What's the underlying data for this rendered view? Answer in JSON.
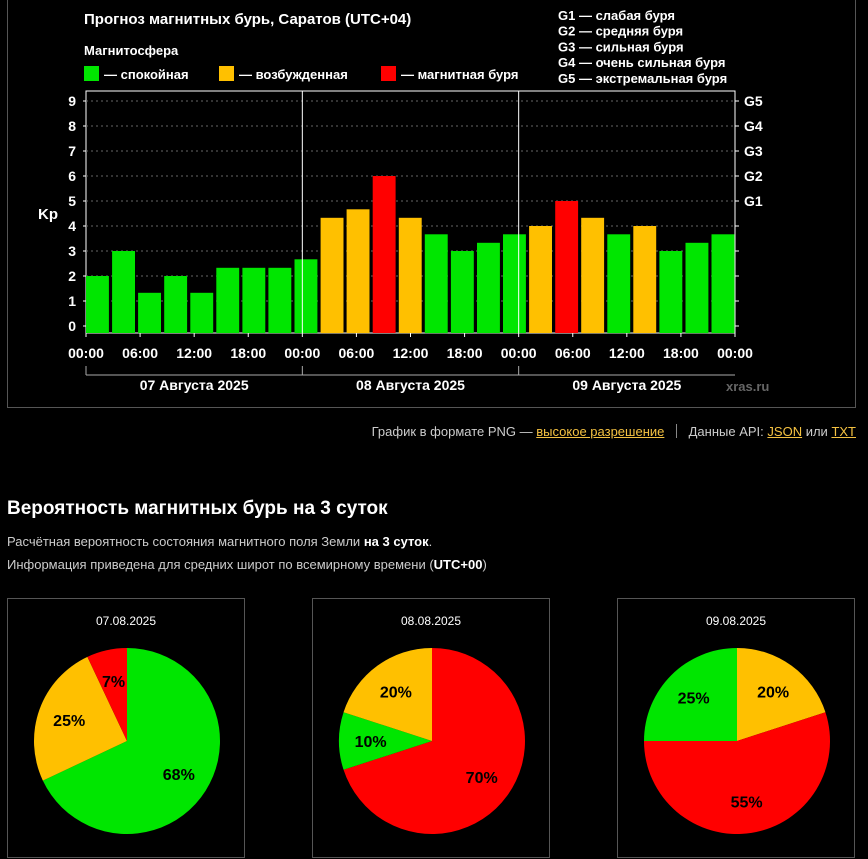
{
  "chart_data": [
    {
      "type": "bar",
      "title": "Прогноз магнитных бурь, Саратов (UTC+04)",
      "legend_title": "Магнитосфера",
      "legend": [
        {
          "label": "— спокойная",
          "color": "#00e600"
        },
        {
          "label": "— возбужденная",
          "color": "#ffc000"
        },
        {
          "label": "— магнитная буря",
          "color": "#ff0000"
        }
      ],
      "g_legend": [
        "G1 — слабая буря",
        "G2 — средняя буря",
        "G3 — сильная буря",
        "G4 — очень сильная буря",
        "G5 — экстремальная буря"
      ],
      "ylabel": "Kp",
      "ylim": [
        0,
        9
      ],
      "y_ticks": [
        "0",
        "1",
        "2",
        "3",
        "4",
        "5",
        "6",
        "7",
        "8",
        "9"
      ],
      "g_ticks": [
        {
          "kp": 5,
          "label": "G1"
        },
        {
          "kp": 6,
          "label": "G2"
        },
        {
          "kp": 7,
          "label": "G3"
        },
        {
          "kp": 8,
          "label": "G4"
        },
        {
          "kp": 9,
          "label": "G5"
        }
      ],
      "x_ticks": [
        "00:00",
        "06:00",
        "12:00",
        "18:00",
        "00:00",
        "06:00",
        "12:00",
        "18:00",
        "00:00",
        "06:00",
        "12:00",
        "18:00",
        "00:00"
      ],
      "days": [
        "07 Августа 2025",
        "08 Августа 2025",
        "09 Августа 2025"
      ],
      "values": [
        2.0,
        3.0,
        1.33,
        2.0,
        1.33,
        2.33,
        2.33,
        2.33,
        2.67,
        4.33,
        4.67,
        6.0,
        4.33,
        3.67,
        3.0,
        3.33,
        3.67,
        4.0,
        5.0,
        4.33,
        3.67,
        4.0,
        3.0,
        3.33,
        3.67
      ],
      "levels": [
        "quiet",
        "quiet",
        "quiet",
        "quiet",
        "quiet",
        "quiet",
        "quiet",
        "quiet",
        "quiet",
        "active",
        "active",
        "storm",
        "active",
        "quiet",
        "quiet",
        "quiet",
        "quiet",
        "active",
        "storm",
        "active",
        "quiet",
        "active",
        "quiet",
        "quiet",
        "quiet"
      ],
      "colors": {
        "quiet": "#00e600",
        "active": "#ffc000",
        "storm": "#ff0000"
      },
      "grid": true,
      "watermark": "xras.ru"
    },
    {
      "type": "pie",
      "title": "07.08.2025",
      "slices": [
        {
          "value": 68,
          "label": "68%",
          "color": "#00e600"
        },
        {
          "value": 25,
          "label": "25%",
          "color": "#ffc000"
        },
        {
          "value": 7,
          "label": "7%",
          "color": "#ff0000"
        }
      ]
    },
    {
      "type": "pie",
      "title": "08.08.2025",
      "slices": [
        {
          "value": 70,
          "label": "70%",
          "color": "#ff0000"
        },
        {
          "value": 10,
          "label": "10%",
          "color": "#00e600"
        },
        {
          "value": 20,
          "label": "20%",
          "color": "#ffc000"
        }
      ]
    },
    {
      "type": "pie",
      "title": "09.08.2025",
      "slices": [
        {
          "value": 20,
          "label": "20%",
          "color": "#ffc000"
        },
        {
          "value": 55,
          "label": "55%",
          "color": "#ff0000"
        },
        {
          "value": 25,
          "label": "25%",
          "color": "#00e600"
        }
      ]
    }
  ],
  "links": {
    "png_prefix": "График в формате PNG —",
    "png_link": "высокое разрешение",
    "api_prefix": "Данные API:",
    "json_link": "JSON",
    "or": "или",
    "txt_link": "TXT"
  },
  "section": {
    "title": "Вероятность магнитных бурь на 3 суток",
    "desc1_prefix": "Расчётная вероятность состояния магнитного поля Земли",
    "desc1_bold": "на 3 суток",
    "desc1_suffix": ".",
    "desc2_prefix": "Информация приведена для средних широт по всемирному времени (",
    "desc2_bold": "UTC+00",
    "desc2_suffix": ")"
  }
}
